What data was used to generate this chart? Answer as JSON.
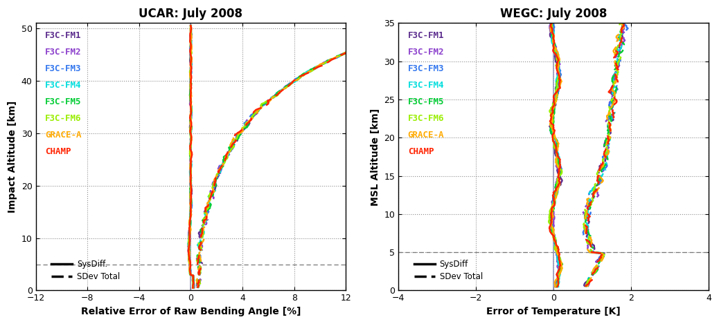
{
  "left_title": "UCAR: July 2008",
  "right_title": "WEGC: July 2008",
  "left_xlabel": "Relative Error of Raw Bending Angle [%]",
  "right_xlabel": "Error of Temperature [K]",
  "left_ylabel": "Impact Altitude [km]",
  "right_ylabel": "MSL Altitude [km]",
  "left_xlim": [
    -12,
    12
  ],
  "right_xlim": [
    -4,
    4
  ],
  "left_ylim": [
    0,
    51
  ],
  "right_ylim": [
    0,
    35
  ],
  "left_xticks": [
    -12,
    -8,
    -4,
    0,
    4,
    8,
    12
  ],
  "right_xticks": [
    -4,
    -2,
    0,
    2,
    4
  ],
  "left_yticks": [
    0,
    10,
    20,
    30,
    40,
    50
  ],
  "right_yticks": [
    0,
    5,
    10,
    15,
    20,
    25,
    30,
    35
  ],
  "left_hline": 5,
  "right_hline": 5,
  "satellite_colors": {
    "F3C-FM1": "#5B2C8D",
    "F3C-FM2": "#8B3FCC",
    "F3C-FM3": "#3377EE",
    "F3C-FM4": "#00DDDD",
    "F3C-FM5": "#00CC33",
    "F3C-FM6": "#99EE00",
    "GRACE-A": "#FFAA00",
    "CHAMP": "#FF2200"
  },
  "legend_labels": [
    "F3C-FM1",
    "F3C-FM2",
    "F3C-FM3",
    "F3C-FM4",
    "F3C-FM5",
    "F3C-FM6",
    "GRACE-A",
    "CHAMP"
  ],
  "vline_color": "#9999BB",
  "background_color": "#FFFFFF",
  "title_fontsize": 12,
  "label_fontsize": 10,
  "tick_fontsize": 9,
  "legend_fontsize": 9
}
